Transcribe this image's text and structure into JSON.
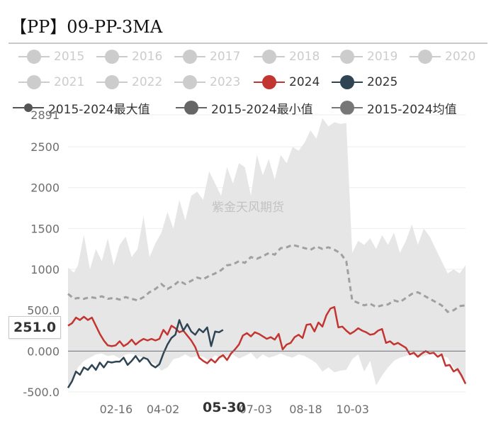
{
  "title": "【PP】09-PP-3MA",
  "watermark": "紫金天风期货",
  "colors": {
    "inactive": "#cccccc",
    "y2024": "#c23531",
    "y2025": "#2f4554",
    "max": "#555555",
    "min": "#666666",
    "avg": "#777777",
    "band": "#e6e6e6",
    "avgLine": "#a0a0a0",
    "grid": "#eeeeee"
  },
  "legend": [
    {
      "label": "2015",
      "key": "inactive",
      "style": "dot"
    },
    {
      "label": "2016",
      "key": "inactive",
      "style": "dot"
    },
    {
      "label": "2017",
      "key": "inactive",
      "style": "dot"
    },
    {
      "label": "2018",
      "key": "inactive",
      "style": "dot"
    },
    {
      "label": "2019",
      "key": "inactive",
      "style": "dot"
    },
    {
      "label": "2020",
      "key": "inactive",
      "style": "dot"
    },
    {
      "label": "2021",
      "key": "inactive",
      "style": "dot"
    },
    {
      "label": "2022",
      "key": "inactive",
      "style": "dot"
    },
    {
      "label": "2023",
      "key": "inactive",
      "style": "dot"
    },
    {
      "label": "2024",
      "key": "y2024",
      "style": "dot"
    },
    {
      "label": "2025",
      "key": "y2025",
      "style": "dot"
    },
    {
      "label": "2015-2024最大值",
      "key": "max",
      "style": "dash"
    },
    {
      "label": "2015-2024最小值",
      "key": "min",
      "style": "dot"
    },
    {
      "label": "2015-2024均值",
      "key": "avg",
      "style": "dot"
    }
  ],
  "axisPointer": {
    "y_label": "251.0",
    "x_label": "05-30"
  },
  "chart_data": {
    "type": "line",
    "title": "【PP】09-PP-3MA",
    "ylim": [
      -500,
      2891
    ],
    "y_ticks": [
      {
        "v": 2891,
        "label": "2891"
      },
      {
        "v": 2500,
        "label": "2500"
      },
      {
        "v": 2000,
        "label": "2000"
      },
      {
        "v": 1500,
        "label": "1500"
      },
      {
        "v": 1000,
        "label": "1000"
      },
      {
        "v": 500,
        "label": "500.0"
      },
      {
        "v": 0,
        "label": "0.000"
      },
      {
        "v": -500,
        "label": "-500.0"
      }
    ],
    "x_domain": [
      0,
      100
    ],
    "x_ticks": [
      {
        "x": 12.1,
        "label": "02-16"
      },
      {
        "x": 23.9,
        "label": "04-02"
      },
      {
        "x": 47.2,
        "label": "07-03"
      },
      {
        "x": 59.8,
        "label": "08-18"
      },
      {
        "x": 71.6,
        "label": "10-03"
      }
    ],
    "series": [
      {
        "name": "2015-2024最大值",
        "key": "max",
        "x": [
          0,
          1.5,
          2.5,
          4,
          5.5,
          7,
          8.5,
          10,
          11.5,
          13,
          14.5,
          16,
          17.5,
          19,
          20.5,
          22,
          23.5,
          25,
          26.5,
          28,
          29.5,
          31,
          32.5,
          34,
          35.5,
          37,
          38.5,
          40,
          41.5,
          43,
          44.5,
          46,
          47.5,
          49,
          50.5,
          52,
          53.5,
          55,
          56.5,
          58,
          59.5,
          61,
          62.5,
          64,
          65.5,
          67,
          68.5,
          70,
          71.5,
          73,
          74.5,
          76,
          77.5,
          79,
          80.5,
          82,
          83.5,
          85,
          86.5,
          88,
          89.5,
          91,
          92.5,
          94,
          95.5,
          97,
          98.5,
          100
        ],
        "y": [
          1020,
          960,
          1050,
          1420,
          1000,
          1250,
          1100,
          1380,
          1050,
          1300,
          1400,
          1150,
          1250,
          1650,
          1150,
          1320,
          1450,
          1700,
          1500,
          1850,
          1600,
          1900,
          1950,
          1850,
          2200,
          2050,
          1900,
          2250,
          2050,
          2300,
          2250,
          1900,
          2400,
          2150,
          2350,
          2100,
          2400,
          2300,
          2500,
          2450,
          2550,
          2700,
          2600,
          2850,
          2750,
          2800,
          2780,
          2790,
          1200,
          1350,
          1300,
          1380,
          1250,
          1420,
          1300,
          1450,
          1200,
          1350,
          1550,
          1300,
          1500,
          1400,
          1250,
          1100,
          950,
          1000,
          950,
          1050
        ]
      },
      {
        "name": "2015-2024最小值",
        "key": "min",
        "x": [
          0,
          1.5,
          2.5,
          4,
          5.5,
          7,
          8.5,
          10,
          11.5,
          13,
          14.5,
          16,
          17.5,
          19,
          20.5,
          22,
          23.5,
          25,
          26.5,
          28,
          29.5,
          31,
          32.5,
          34,
          35.5,
          37,
          38.5,
          40,
          41.5,
          43,
          44.5,
          46,
          47.5,
          49,
          50.5,
          52,
          53.5,
          55,
          56.5,
          58,
          59.5,
          61,
          62.5,
          64,
          65.5,
          67,
          68.5,
          70,
          71.5,
          73,
          74.5,
          76,
          77.5,
          79,
          80.5,
          82,
          83.5,
          85,
          86.5,
          88,
          89.5,
          91,
          92.5,
          94,
          95.5,
          97,
          98.5,
          100
        ],
        "y": [
          -450,
          -320,
          -200,
          -120,
          -80,
          -40,
          -30,
          -60,
          -50,
          -90,
          -40,
          -30,
          -60,
          -80,
          -120,
          -160,
          -240,
          -200,
          -100,
          -80,
          -40,
          -80,
          -60,
          -70,
          -120,
          -50,
          -90,
          -60,
          -40,
          -90,
          -60,
          -20,
          -100,
          -40,
          -80,
          -60,
          -30,
          -60,
          -80,
          -40,
          -60,
          -100,
          -150,
          -250,
          -200,
          -260,
          -240,
          -230,
          -100,
          -40,
          -250,
          -120,
          -420,
          -300,
          -200,
          -120,
          -80,
          -60,
          -40,
          -80,
          -60,
          -40,
          -30,
          -60,
          -80,
          -200,
          -300,
          -420
        ]
      },
      {
        "name": "2015-2024均值",
        "key": "avg",
        "x": [
          0,
          1.5,
          2.5,
          4,
          5.5,
          7,
          8.5,
          10,
          11.5,
          13,
          14.5,
          16,
          17.5,
          19,
          20.5,
          22,
          23.5,
          25,
          26.5,
          28,
          29.5,
          31,
          32.5,
          34,
          35.5,
          37,
          38.5,
          40,
          41.5,
          43,
          44.5,
          46,
          47.5,
          49,
          50.5,
          52,
          53.5,
          55,
          56.5,
          58,
          59.5,
          61,
          62.5,
          64,
          65.5,
          67,
          68.5,
          70,
          71.5,
          73,
          74.5,
          76,
          77.5,
          79,
          80.5,
          82,
          83.5,
          85,
          86.5,
          88,
          89.5,
          91,
          92.5,
          94,
          95.5,
          97,
          98.5,
          100
        ],
        "y": [
          700,
          640,
          650,
          640,
          660,
          650,
          670,
          640,
          650,
          630,
          660,
          640,
          620,
          660,
          720,
          760,
          820,
          760,
          800,
          860,
          820,
          860,
          900,
          880,
          920,
          950,
          990,
          1050,
          1060,
          1100,
          1080,
          1150,
          1130,
          1160,
          1200,
          1180,
          1260,
          1270,
          1300,
          1280,
          1260,
          1240,
          1280,
          1250,
          1270,
          1240,
          1200,
          1100,
          620,
          590,
          560,
          580,
          540,
          560,
          570,
          620,
          600,
          650,
          700,
          720,
          680,
          640,
          600,
          560,
          480,
          500,
          550,
          560
        ]
      },
      {
        "name": "2024",
        "key": "y2024",
        "x": [
          0,
          1,
          2,
          3,
          4,
          5,
          6,
          7,
          8,
          9,
          10,
          11,
          12,
          13,
          14,
          15,
          16,
          17,
          18,
          19,
          20,
          21,
          22,
          23,
          24,
          25,
          26,
          27,
          28,
          29,
          30,
          31,
          32,
          33,
          34,
          35,
          36,
          37,
          38,
          39,
          40,
          41,
          42,
          43,
          44,
          45,
          46,
          47,
          48,
          49,
          50,
          51,
          52,
          53,
          54,
          55,
          56,
          57,
          58,
          59,
          60,
          61,
          62,
          63,
          64,
          65,
          66,
          67,
          68,
          69,
          70,
          71,
          72,
          73,
          74,
          75,
          76,
          77,
          78,
          79,
          80,
          81,
          82,
          83,
          84,
          85,
          86,
          87,
          88,
          89,
          90,
          91,
          92,
          93,
          94,
          95,
          96,
          97,
          98,
          99,
          100
        ],
        "y": [
          310,
          340,
          410,
          380,
          420,
          380,
          410,
          310,
          210,
          130,
          70,
          60,
          70,
          120,
          60,
          90,
          140,
          80,
          120,
          150,
          130,
          150,
          130,
          150,
          260,
          200,
          310,
          280,
          230,
          250,
          190,
          130,
          50,
          -80,
          -120,
          -150,
          -100,
          -140,
          -80,
          -50,
          -110,
          -30,
          20,
          80,
          190,
          220,
          180,
          230,
          210,
          180,
          150,
          170,
          140,
          210,
          20,
          80,
          100,
          170,
          200,
          160,
          320,
          330,
          240,
          350,
          300,
          440,
          520,
          540,
          290,
          300,
          250,
          210,
          240,
          280,
          250,
          230,
          200,
          210,
          250,
          270,
          100,
          120,
          80,
          100,
          70,
          40,
          -40,
          -20,
          -70,
          -30,
          0,
          -30,
          -20,
          -70,
          -40,
          -180,
          -170,
          -250,
          -220,
          -300,
          -400
        ]
      },
      {
        "name": "2025",
        "key": "y2025",
        "x": [
          0,
          1,
          2,
          3,
          4,
          5,
          6,
          7,
          8,
          9,
          10,
          11,
          12,
          13,
          14,
          15,
          16,
          17,
          18,
          19,
          20,
          21,
          22,
          23,
          24,
          25,
          26,
          27,
          28,
          29,
          30,
          31,
          32,
          33,
          34,
          35,
          36,
          37,
          38,
          39
        ],
        "y": [
          -450,
          -370,
          -250,
          -290,
          -200,
          -230,
          -170,
          -230,
          -140,
          -200,
          -130,
          -140,
          -130,
          -130,
          -80,
          -170,
          -120,
          -60,
          -130,
          -80,
          -100,
          -170,
          -200,
          -160,
          -30,
          80,
          160,
          200,
          380,
          250,
          330,
          240,
          200,
          270,
          230,
          290,
          60,
          240,
          230,
          260
        ]
      }
    ]
  }
}
